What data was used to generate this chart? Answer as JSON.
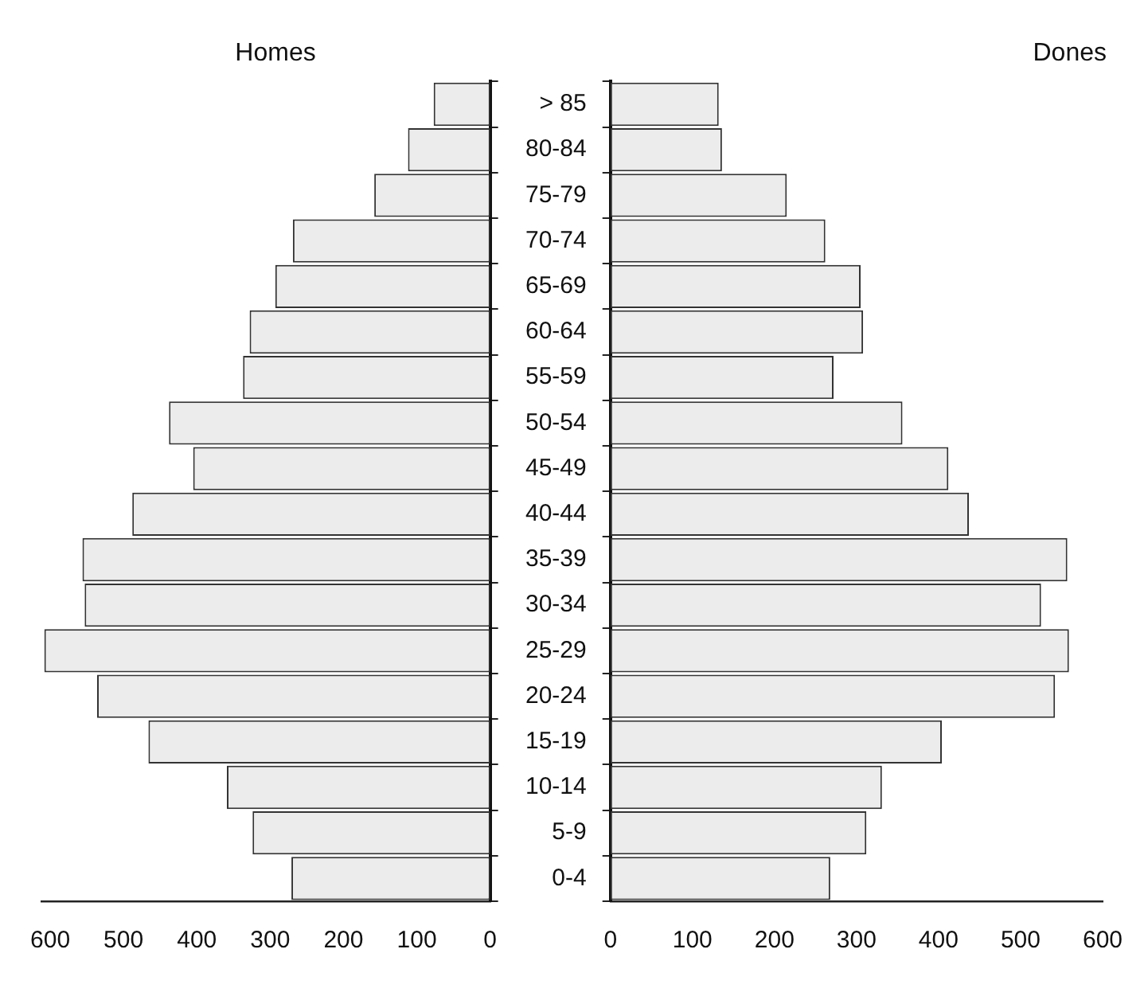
{
  "chart_data": [
    {
      "type": "bar",
      "orientation": "horizontal",
      "title": "Homes",
      "categories": [
        null,
        null,
        null,
        null,
        null,
        null,
        null,
        null,
        null,
        null,
        null,
        null,
        null,
        null,
        null,
        null,
        null,
        null
      ],
      "series": [
        {
          "color": "#ececec",
          "values": [
            77,
            112,
            158,
            269,
            293,
            328,
            337,
            438,
            405,
            488,
            556,
            553,
            608,
            536,
            466,
            359,
            324,
            271
          ]
        }
      ],
      "xlim": [
        612,
        0
      ],
      "xticks": [
        600,
        500,
        400,
        300,
        200,
        100,
        0
      ],
      "tick_labels": "x"
    },
    {
      "type": "bar",
      "orientation": "horizontal",
      "title": "Dones",
      "categories": [
        "> 85",
        "80-84",
        "75-79",
        "70-74",
        "65-69",
        "60-64",
        "55-59",
        "50-54",
        "45-49",
        "40-44",
        "35-39",
        "30-34",
        "25-29",
        "20-24",
        "15-19",
        "10-14",
        "5-9",
        "0-4"
      ],
      "series": [
        {
          "color": "#ececec",
          "values": [
            132,
            136,
            215,
            262,
            305,
            308,
            272,
            356,
            412,
            437,
            557,
            525,
            559,
            542,
            404,
            331,
            312,
            268
          ]
        }
      ],
      "xlim": [
        0,
        600
      ],
      "xticks": [
        0,
        100,
        200,
        300,
        400,
        500,
        600
      ]
    }
  ]
}
